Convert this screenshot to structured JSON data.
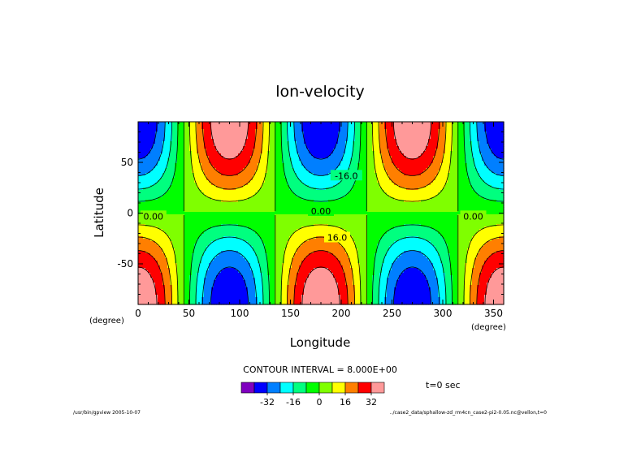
{
  "chart_data": {
    "type": "contour",
    "title": "lon-velocity",
    "xlabel": "Longitude",
    "ylabel": "Latitude",
    "x_unit": "(degree)",
    "y_unit": "(degree)",
    "xlim": [
      0,
      360
    ],
    "ylim": [
      -90,
      90
    ],
    "xticks": [
      0,
      50,
      100,
      150,
      200,
      250,
      300,
      350
    ],
    "yticks": [
      -50,
      0,
      50
    ],
    "contour_interval_text": "CONTOUR INTERVAL = 8.000E+00",
    "time_text": "t=0 sec",
    "levels": [
      -40,
      -32,
      -24,
      -16,
      -8,
      0,
      8,
      16,
      24,
      32,
      40
    ],
    "colorbar_ticks": [
      "-32",
      "-16",
      "0",
      "16",
      "32"
    ],
    "colors": [
      "#7f00bf",
      "#0000ff",
      "#007fff",
      "#00ffff",
      "#00ff7f",
      "#00ff00",
      "#7fff00",
      "#ffff00",
      "#ff7f00",
      "#ff0000",
      "#ff9999"
    ],
    "field": "u = -40 * cos(2*lon) * sin(lat)",
    "contour_labels": [
      {
        "text": "0.00",
        "lon": 15,
        "lat": -3
      },
      {
        "text": "0.00",
        "lon": 180,
        "lat": 2
      },
      {
        "text": "0.00",
        "lon": 330,
        "lat": -3
      },
      {
        "text": "-16.0",
        "lon": 205,
        "lat": 37
      },
      {
        "text": "16.0",
        "lon": 196,
        "lat": -24
      }
    ]
  },
  "footer_left": "/usr/bin/gpview  2005-10-07",
  "footer_right": "../case2_data/sphallow-zd_rm4cn_case2-pi2-0.05.nc@vellon,t=0"
}
